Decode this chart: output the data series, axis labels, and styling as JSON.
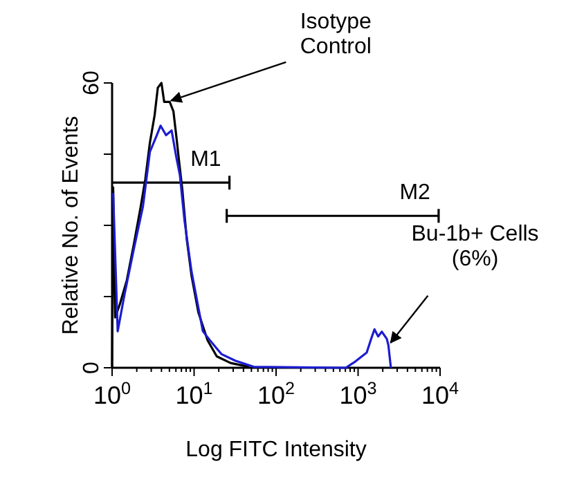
{
  "chart_data": {
    "type": "line",
    "xlabel": "Log FITC Intensity",
    "ylabel": "Relative No. of Events",
    "log": "x",
    "xlim": [
      1,
      10000
    ],
    "xticks": [
      {
        "value": 1,
        "label": "10$^{0}$"
      },
      {
        "value": 2,
        "label": null
      },
      {
        "value": 3,
        "label": null
      },
      {
        "value": 4,
        "label": null
      },
      {
        "value": 5,
        "label": null
      },
      {
        "value": 6,
        "label": null
      },
      {
        "value": 7,
        "label": null
      },
      {
        "value": 8,
        "label": null
      },
      {
        "value": 9,
        "label": null
      },
      {
        "value": 10,
        "label": "10$^{1}$"
      },
      {
        "value": 20,
        "label": null
      },
      {
        "value": 30,
        "label": null
      },
      {
        "value": 40,
        "label": null
      },
      {
        "value": 50,
        "label": null
      },
      {
        "value": 60,
        "label": null
      },
      {
        "value": 70,
        "label": null
      },
      {
        "value": 80,
        "label": null
      },
      {
        "value": 90,
        "label": null
      },
      {
        "value": 100,
        "label": "10$^{2}$"
      },
      {
        "value": 200,
        "label": null
      },
      {
        "value": 300,
        "label": null
      },
      {
        "value": 400,
        "label": null
      },
      {
        "value": 500,
        "label": null
      },
      {
        "value": 600,
        "label": null
      },
      {
        "value": 700,
        "label": null
      },
      {
        "value": 800,
        "label": null
      },
      {
        "value": 900,
        "label": null
      },
      {
        "value": 1000,
        "label": "10$^{3}$"
      },
      {
        "value": 2000,
        "label": null
      },
      {
        "value": 3000,
        "label": null
      },
      {
        "value": 4000,
        "label": null
      },
      {
        "value": 5000,
        "label": null
      },
      {
        "value": 6000,
        "label": null
      },
      {
        "value": 7000,
        "label": null
      },
      {
        "value": 8000,
        "label": null
      },
      {
        "value": 9000,
        "label": null
      },
      {
        "value": 10000,
        "label": "10$^{4}$"
      }
    ],
    "ylim": [
      0,
      60
    ],
    "yticks": [
      0,
      {
        "value": 15,
        "label": null
      },
      {
        "value": 30,
        "label": null
      },
      {
        "value": 45,
        "label": null
      },
      60
    ],
    "grid": false,
    "series": [
      {
        "color": "#000000",
        "x": [
          1,
          1.03,
          1.09,
          1.25,
          1.51,
          1.84,
          2.23,
          2.54,
          2.89,
          3.3,
          3.61,
          4,
          4.32,
          5.05,
          5.6,
          6.05,
          6.55,
          7.16,
          8.15,
          9.3,
          11.3,
          14.6,
          18.9,
          27.9,
          46.9
        ],
        "values": [
          0,
          38,
          10.6,
          13.5,
          18.4,
          26,
          33.9,
          39.7,
          47.4,
          53.2,
          59,
          60,
          56,
          56,
          54,
          49,
          43.6,
          37.8,
          27,
          19.4,
          11.6,
          5.8,
          2.4,
          1,
          0.2
        ]
      },
      {
        "name": "M1",
        "color": "#000000",
        "x": [
          1,
          27
        ],
        "values": [
          39,
          39
        ]
      },
      {
        "name": "M2",
        "color": "#000000",
        "x": [
          25,
          9600
        ],
        "values": [
          32,
          32
        ]
      },
      {
        "color": "#1c1cd0",
        "x": [
          1.03,
          1.17,
          1.42,
          1.84,
          2.38,
          2.89,
          3.51,
          3.9,
          4.55,
          5.32,
          6.05,
          6.71,
          7.64,
          9.3,
          11.3,
          12.8,
          15.6,
          21.5,
          31.8,
          53.3,
          700,
          708,
          923,
          1274,
          1445,
          1585,
          1758,
          1950,
          2239,
          2344,
          2512
        ],
        "values": [
          36.8,
          7.7,
          15.5,
          25,
          34,
          45.5,
          49,
          51,
          49,
          50,
          44.5,
          40.6,
          31,
          20.3,
          12.6,
          7.7,
          5.8,
          2.9,
          1.5,
          0.2,
          0,
          0,
          1.3,
          3.2,
          6.1,
          8.1,
          6.6,
          7.6,
          6.1,
          4.7,
          0
        ]
      }
    ],
    "annotations": [
      {
        "text": "Isotype Control",
        "x": 5.05,
        "y": 56
      },
      {
        "text": "Bu-1b+ Cells (6%)",
        "x": 2400,
        "y": 5
      }
    ]
  }
}
